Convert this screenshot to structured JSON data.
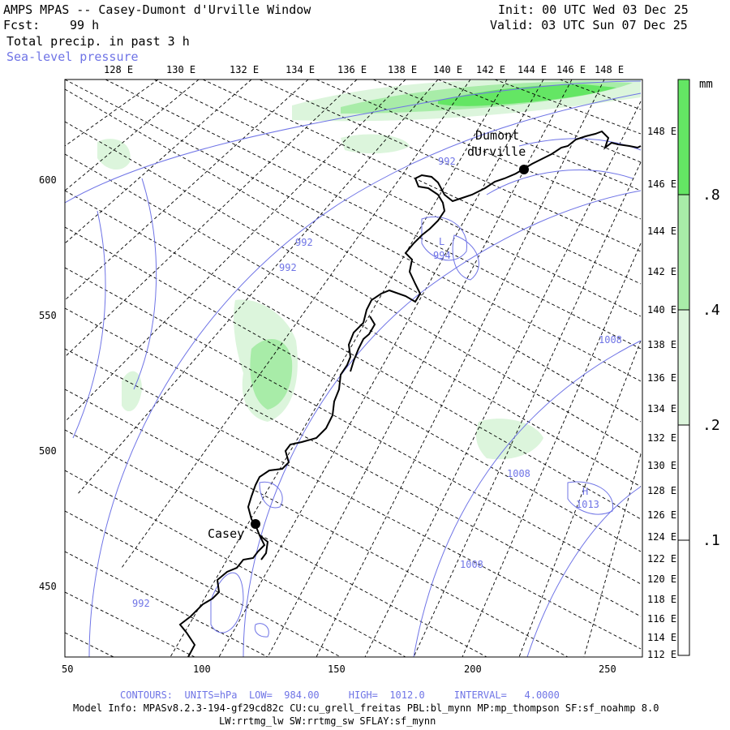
{
  "header": {
    "title": "AMPS MPAS -- Casey-Dumont d'Urville Window",
    "fcst_label": "Fcst:",
    "fcst_value": "99 h",
    "field": "Total precip. in past 3 h",
    "overlay": "Sea-level pressure",
    "init": "Init: 00 UTC Wed 03 Dec 25",
    "valid": "Valid: 03 UTC Sun 07 Dec 25"
  },
  "axes": {
    "top_lon_labels": [
      "128 E",
      "130 E",
      "132 E",
      "134 E",
      "136 E",
      "138 E",
      "140 E",
      "142 E",
      "144 E",
      "146 E",
      "148 E"
    ],
    "right_lon_labels": [
      "148 E",
      "146 E",
      "144 E",
      "142 E",
      "140 E",
      "138 E",
      "136 E",
      "134 E",
      "132 E",
      "130 E",
      "128 E",
      "126 E",
      "124 E",
      "122 E",
      "120 E",
      "118 E",
      "116 E",
      "114 E",
      "112 E"
    ],
    "left_grid_labels": [
      "600",
      "550",
      "500",
      "450"
    ],
    "bottom_grid_labels": [
      "50",
      "100",
      "150",
      "200",
      "250"
    ]
  },
  "colorbar": {
    "unit": "mm",
    "levels": [
      ".1",
      ".2",
      ".4",
      ".8"
    ],
    "colors": [
      "#ffffff",
      "#dcf5dc",
      "#a8eca8",
      "#64e664"
    ]
  },
  "places": [
    {
      "name": "Dumont\ndUrville",
      "name_line1": "Dumont",
      "name_line2": "dUrville"
    },
    {
      "name": "Casey"
    }
  ],
  "contour_labels": [
    "992",
    "992",
    "992",
    "L",
    "994",
    "1008",
    "1008",
    "1008",
    "H",
    "1013",
    "992"
  ],
  "footer": {
    "contours": "CONTOURS:  UNITS=hPa  LOW=  984.00     HIGH=  1012.0     INTERVAL=   4.0000",
    "model_info_1": "Model Info: MPASv8.2.3-194-gf29cd82c CU:cu_grell_freitas PBL:bl_mynn MP:mp_thompson SF:sf_noahmp 8.0",
    "model_info_2": "LW:rrtmg_lw SW:rrtmg_sw SFLAY:sf_mynn"
  },
  "colors": {
    "contour": "#6f74e6",
    "precip_light": "#dcf5dc",
    "precip_mid": "#a8eca8",
    "precip_heavy": "#64e664"
  }
}
